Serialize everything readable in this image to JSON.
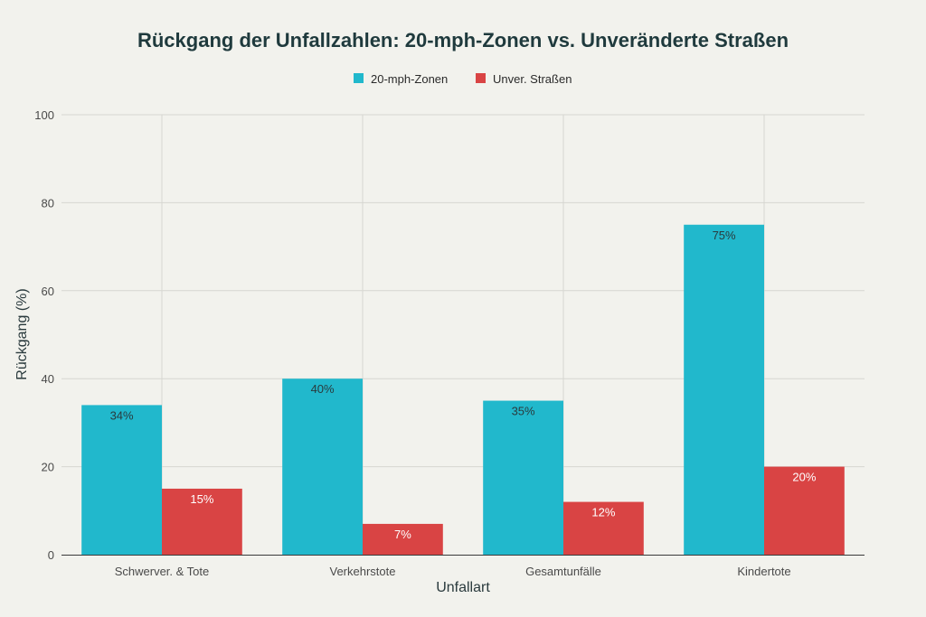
{
  "chart_data": {
    "type": "bar",
    "title": "Rückgang der Unfallzahlen: 20-mph-Zonen vs. Unveränderte Straßen",
    "xlabel": "Unfallart",
    "ylabel": "Rückgang (%)",
    "ylim": [
      0,
      100
    ],
    "yticks": [
      0,
      20,
      40,
      60,
      80,
      100
    ],
    "categories": [
      "Schwerver. & Tote",
      "Verkehrstote",
      "Gesamtunfälle",
      "Kindertote"
    ],
    "series": [
      {
        "name": "20-mph-Zonen",
        "color": "#21b8cc",
        "label_color": "#2a3a3d",
        "values": [
          34,
          40,
          35,
          75
        ],
        "labels": [
          "34%",
          "40%",
          "35%",
          "75%"
        ]
      },
      {
        "name": "Unver. Straßen",
        "color": "#d94444",
        "label_color": "#ffffff",
        "values": [
          15,
          7,
          12,
          20
        ],
        "labels": [
          "15%",
          "7%",
          "12%",
          "20%"
        ]
      }
    ],
    "legend_position": "top-center",
    "grid": true
  }
}
